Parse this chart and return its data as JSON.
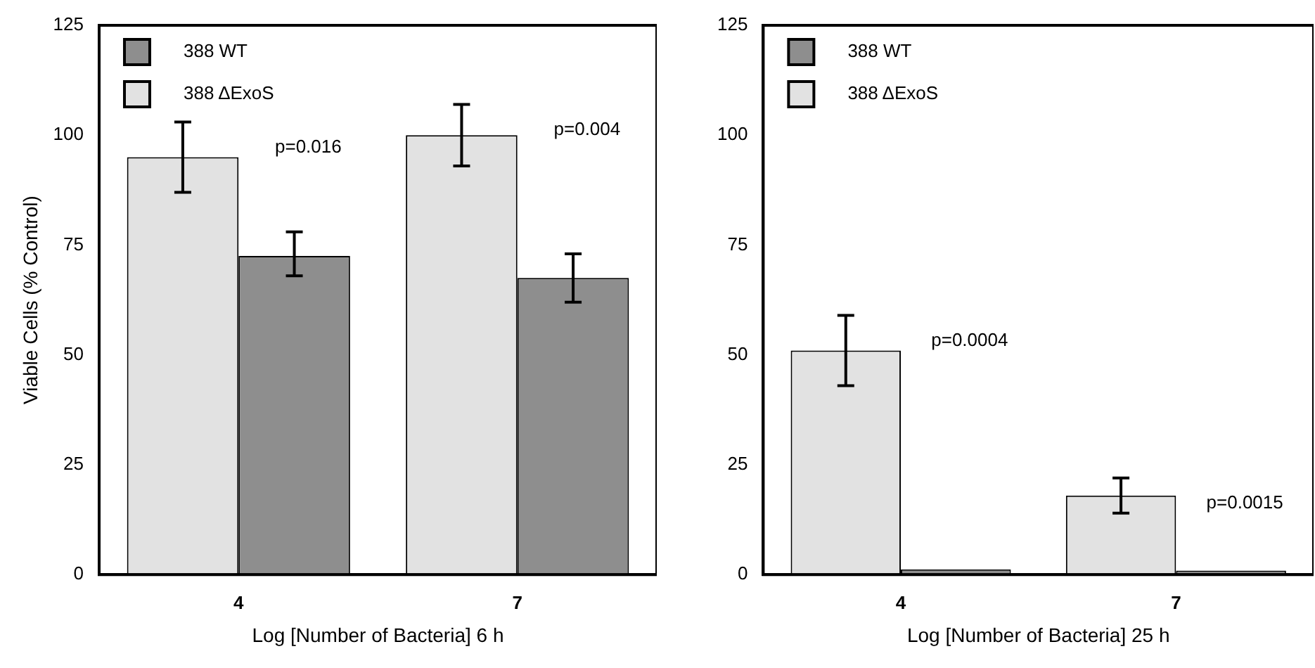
{
  "chart_data": [
    {
      "type": "bar",
      "xlabel": "Log [Number of Bacteria] 6 h",
      "ylabel": "Viable Cells (% Control)",
      "categories": [
        "4",
        "7"
      ],
      "series": [
        {
          "name": "388 ΔExoS",
          "color": "#e2e2e2",
          "values": [
            95,
            100
          ],
          "errors": [
            [
              87,
              103
            ],
            [
              93,
              107
            ]
          ]
        },
        {
          "name": "388 WT",
          "color": "#8e8e8e",
          "values": [
            72.5,
            67.5
          ],
          "errors": [
            [
              68,
              78
            ],
            [
              62,
              73
            ]
          ]
        }
      ],
      "ylim": [
        0,
        125
      ],
      "yticks": [
        0,
        25,
        50,
        75,
        100,
        125
      ],
      "grid": false,
      "legend": "top left",
      "annotations": [
        "p=0.016",
        "p=0.004"
      ]
    },
    {
      "type": "bar",
      "xlabel": "Log [Number of Bacteria] 25 h",
      "categories": [
        "4",
        "7"
      ],
      "series": [
        {
          "name": "388 ΔExoS",
          "color": "#e2e2e2",
          "values": [
            51,
            18
          ],
          "errors": [
            [
              43,
              59
            ],
            [
              14,
              22
            ]
          ]
        },
        {
          "name": "388 WT",
          "color": "#8e8e8e",
          "values": [
            1.2,
            0.9
          ]
        }
      ],
      "ylim": [
        0,
        125
      ],
      "yticks": [
        0,
        25,
        50,
        75,
        100,
        125
      ],
      "grid": false,
      "legend": "top left",
      "annotations": [
        "p=0.0004",
        "p=0.0015"
      ]
    }
  ]
}
